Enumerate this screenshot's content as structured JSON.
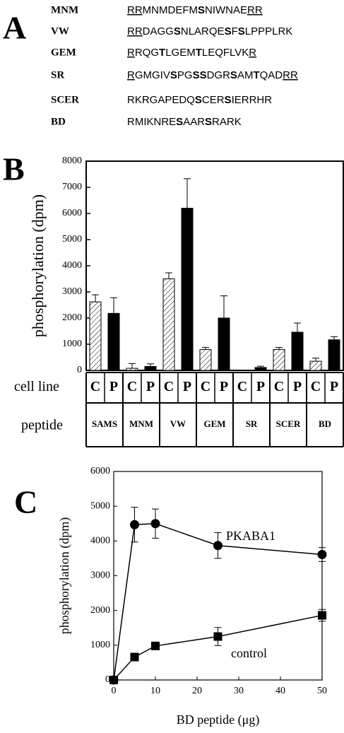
{
  "panel_a": {
    "label": "A",
    "rows": [
      {
        "name": "MNM",
        "segments": [
          {
            "text": "RR",
            "underline": true
          },
          {
            "text": "MNMDEFM"
          },
          {
            "text": "S",
            "bold": true
          },
          {
            "text": "NIWNAE"
          },
          {
            "text": "RR",
            "underline": true
          }
        ]
      },
      {
        "name": "VW",
        "segments": [
          {
            "text": "RR",
            "underline": true
          },
          {
            "text": "DAGG"
          },
          {
            "text": "S",
            "bold": true
          },
          {
            "text": "NLARQE"
          },
          {
            "text": "S",
            "bold": true
          },
          {
            "text": "F"
          },
          {
            "text": "S",
            "bold": true
          },
          {
            "text": "LPPPLRK"
          }
        ]
      },
      {
        "name": "GEM",
        "segments": [
          {
            "text": "R",
            "underline": true
          },
          {
            "text": "RQG"
          },
          {
            "text": "T",
            "bold": true
          },
          {
            "text": "LGEM"
          },
          {
            "text": "T",
            "bold": true
          },
          {
            "text": "LEQFLVK"
          },
          {
            "text": "R",
            "underline": true
          }
        ]
      },
      {
        "name": "SR",
        "segments": [
          {
            "text": "R",
            "underline": true
          },
          {
            "text": "GMGIV"
          },
          {
            "text": "S",
            "bold": true
          },
          {
            "text": "PG"
          },
          {
            "text": "SS",
            "bold": true
          },
          {
            "text": "DGR"
          },
          {
            "text": "S",
            "bold": true
          },
          {
            "text": "AM"
          },
          {
            "text": "T",
            "bold": true
          },
          {
            "text": "QAD"
          },
          {
            "text": "RR",
            "underline": true
          }
        ]
      },
      {
        "name": "SCER",
        "segments": [
          {
            "text": "RKRGAPEDQ"
          },
          {
            "text": "S",
            "bold": true
          },
          {
            "text": "CER"
          },
          {
            "text": "S",
            "bold": true
          },
          {
            "text": "IERRHR"
          }
        ]
      },
      {
        "name": "BD",
        "segments": [
          {
            "text": "RMIKNRE"
          },
          {
            "text": "S",
            "bold": true
          },
          {
            "text": "AAR"
          },
          {
            "text": "S",
            "bold": true
          },
          {
            "text": "RARK"
          }
        ]
      }
    ]
  },
  "chart_data": [
    {
      "type": "bar",
      "panel_label": "B",
      "y_label": "phosphorylation (dpm)",
      "row_labels": [
        "cell line",
        "peptide"
      ],
      "categories": [
        "SAMS",
        "MNM",
        "VW",
        "GEM",
        "SR",
        "SCER",
        "BD"
      ],
      "series": [
        {
          "name": "C",
          "pattern": "hatch",
          "values": [
            2620,
            80,
            3500,
            800,
            0,
            800,
            350
          ],
          "errors": [
            270,
            180,
            230,
            80,
            0,
            80,
            120
          ]
        },
        {
          "name": "P",
          "color": "#000000",
          "values": [
            2180,
            150,
            6200,
            2000,
            110,
            1460,
            1170
          ],
          "errors": [
            600,
            100,
            1130,
            850,
            50,
            350,
            120
          ]
        }
      ],
      "ylim": [
        0,
        8000
      ],
      "yticks": [
        0,
        1000,
        2000,
        3000,
        4000,
        5000,
        6000,
        7000,
        8000
      ]
    },
    {
      "type": "line",
      "panel_label": "C",
      "y_label": "phosphorylation (dpm)",
      "x_label": "BD peptide (μg)",
      "x": [
        0,
        5,
        10,
        25,
        50
      ],
      "series": [
        {
          "name": "PKABA1",
          "marker": "circle",
          "values": [
            0,
            4470,
            4500,
            3870,
            3610
          ],
          "errors": [
            0,
            500,
            420,
            370,
            200
          ]
        },
        {
          "name": "control",
          "marker": "square",
          "values": [
            0,
            660,
            980,
            1250,
            1860
          ],
          "errors": [
            0,
            0,
            80,
            260,
            170
          ]
        }
      ],
      "xlim": [
        0,
        50
      ],
      "xticks": [
        0,
        10,
        20,
        30,
        40,
        50
      ],
      "ylim": [
        0,
        6000
      ],
      "yticks": [
        0,
        1000,
        2000,
        3000,
        4000,
        5000,
        6000
      ]
    }
  ]
}
